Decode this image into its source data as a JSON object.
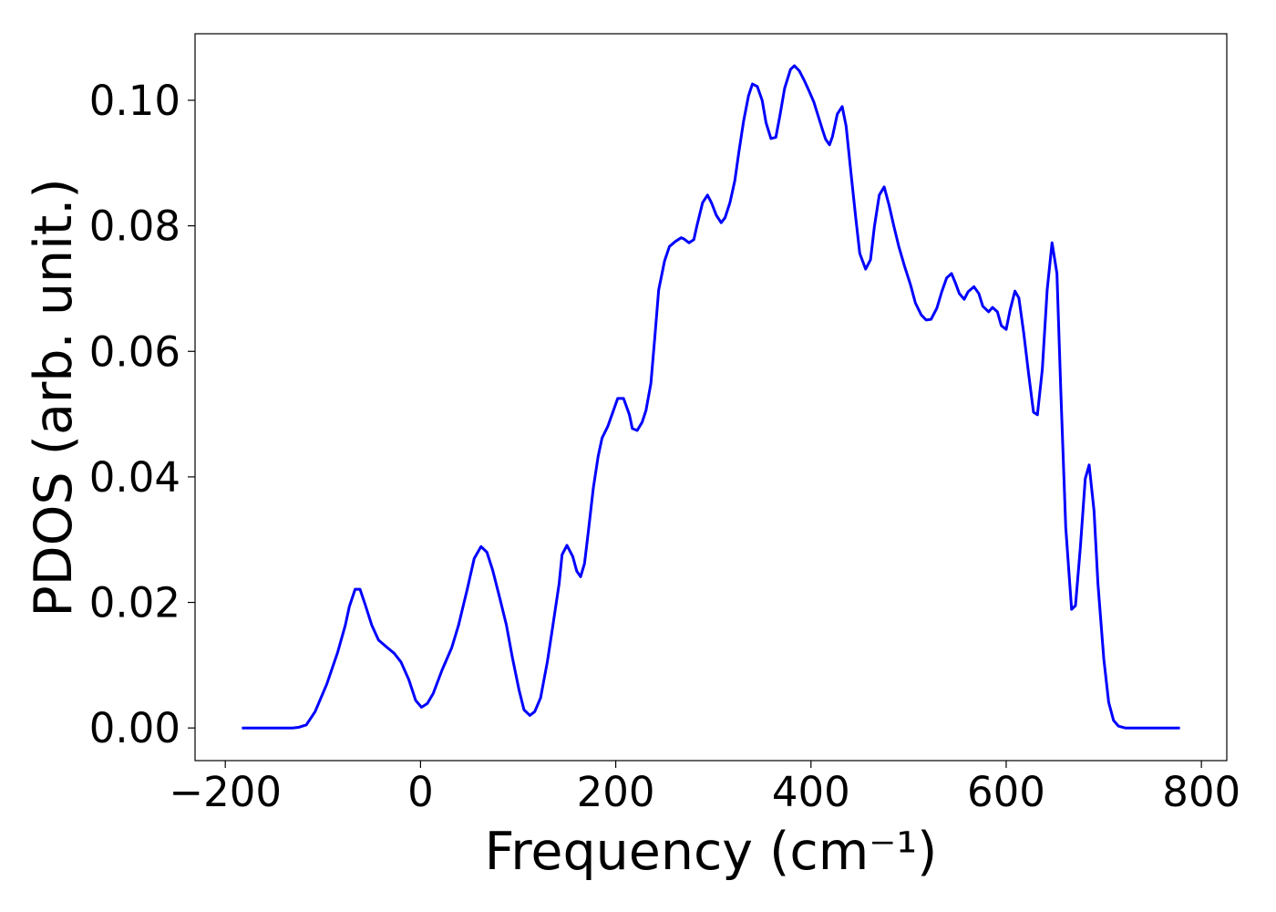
{
  "chart_data": {
    "type": "line",
    "xlabel": "Frequency (cm⁻¹)",
    "ylabel": "PDOS (arb. unit.)",
    "xlim": [
      -231,
      826
    ],
    "ylim": [
      -0.0052,
      0.1106
    ],
    "xticks": [
      {
        "value": -200,
        "label": "−200"
      },
      0,
      200,
      400,
      600,
      800
    ],
    "yticks": [
      {
        "value": 0,
        "label": "0.00"
      },
      0.02,
      0.04,
      0.06,
      0.08,
      {
        "value": 0.1,
        "label": "0.10"
      }
    ],
    "x": [
      -183,
      -131,
      -125,
      -117,
      -108,
      -96,
      -85,
      -77,
      -73,
      -67,
      -62,
      -57,
      -50,
      -43,
      -34,
      -27,
      -20,
      -12,
      -5,
      1,
      7,
      13,
      22,
      32,
      39,
      48,
      55,
      62,
      68,
      74,
      81,
      88,
      94,
      101,
      106,
      112,
      117,
      123,
      130,
      135,
      142,
      145,
      150,
      156,
      160,
      164,
      168,
      172,
      177,
      182,
      186,
      192,
      197,
      202,
      208,
      214,
      217,
      222,
      227,
      231,
      236,
      240,
      244,
      250,
      255,
      261,
      267,
      270,
      275,
      280,
      283,
      289,
      294,
      298,
      303,
      308,
      312,
      317,
      322,
      326,
      331,
      336,
      340,
      345,
      350,
      354,
      359,
      364,
      368,
      373,
      379,
      383,
      388,
      393,
      398,
      403,
      407,
      412,
      415,
      419,
      422,
      427,
      432,
      436,
      441,
      446,
      450,
      456,
      461,
      465,
      470,
      475,
      480,
      485,
      490,
      496,
      502,
      507,
      513,
      518,
      523,
      529,
      534,
      539,
      544,
      548,
      552,
      557,
      561,
      567,
      572,
      576,
      582,
      586,
      591,
      595,
      600,
      604,
      609,
      613,
      618,
      623,
      628,
      632,
      637,
      642,
      647,
      652,
      656,
      661,
      667,
      671,
      676,
      681,
      685,
      690,
      694,
      700,
      705,
      710,
      715,
      722,
      778
    ],
    "series": [
      {
        "color": "#0000ff",
        "values": [
          0,
          0,
          0.0001,
          0.0005,
          0.0026,
          0.007,
          0.012,
          0.0164,
          0.0193,
          0.0221,
          0.0221,
          0.0198,
          0.0164,
          0.014,
          0.0128,
          0.0119,
          0.0105,
          0.0077,
          0.0044,
          0.0033,
          0.0039,
          0.0055,
          0.0092,
          0.0128,
          0.0164,
          0.0222,
          0.027,
          0.0289,
          0.028,
          0.0251,
          0.0208,
          0.0164,
          0.0113,
          0.006,
          0.0029,
          0.002,
          0.0026,
          0.0048,
          0.0106,
          0.0157,
          0.023,
          0.0276,
          0.0291,
          0.0273,
          0.025,
          0.0241,
          0.0262,
          0.0314,
          0.0382,
          0.0433,
          0.0462,
          0.0481,
          0.0503,
          0.0525,
          0.0525,
          0.0499,
          0.0477,
          0.0474,
          0.0487,
          0.0506,
          0.0549,
          0.0622,
          0.0698,
          0.0744,
          0.0767,
          0.0775,
          0.0781,
          0.0779,
          0.0773,
          0.0778,
          0.0799,
          0.0837,
          0.0849,
          0.0837,
          0.0817,
          0.0805,
          0.0813,
          0.0837,
          0.0872,
          0.0916,
          0.0967,
          0.1007,
          0.1026,
          0.1022,
          0.1,
          0.0964,
          0.0939,
          0.0941,
          0.0974,
          0.1019,
          0.1049,
          0.1055,
          0.1047,
          0.1032,
          0.1015,
          0.0997,
          0.0977,
          0.0952,
          0.0938,
          0.0929,
          0.0942,
          0.0978,
          0.099,
          0.0959,
          0.0884,
          0.0811,
          0.0756,
          0.0731,
          0.0746,
          0.0799,
          0.0849,
          0.0862,
          0.0833,
          0.0799,
          0.0767,
          0.0735,
          0.0706,
          0.0677,
          0.0658,
          0.065,
          0.0651,
          0.0669,
          0.0695,
          0.0717,
          0.0724,
          0.0709,
          0.0692,
          0.0683,
          0.0695,
          0.0703,
          0.0692,
          0.0672,
          0.0663,
          0.067,
          0.0663,
          0.0641,
          0.0635,
          0.0666,
          0.0696,
          0.0685,
          0.0629,
          0.0564,
          0.0503,
          0.0499,
          0.0571,
          0.0698,
          0.0773,
          0.0724,
          0.0535,
          0.032,
          0.0189,
          0.0195,
          0.0288,
          0.0397,
          0.0419,
          0.0346,
          0.023,
          0.011,
          0.0041,
          0.0012,
          0.0003,
          0,
          0
        ]
      }
    ]
  }
}
